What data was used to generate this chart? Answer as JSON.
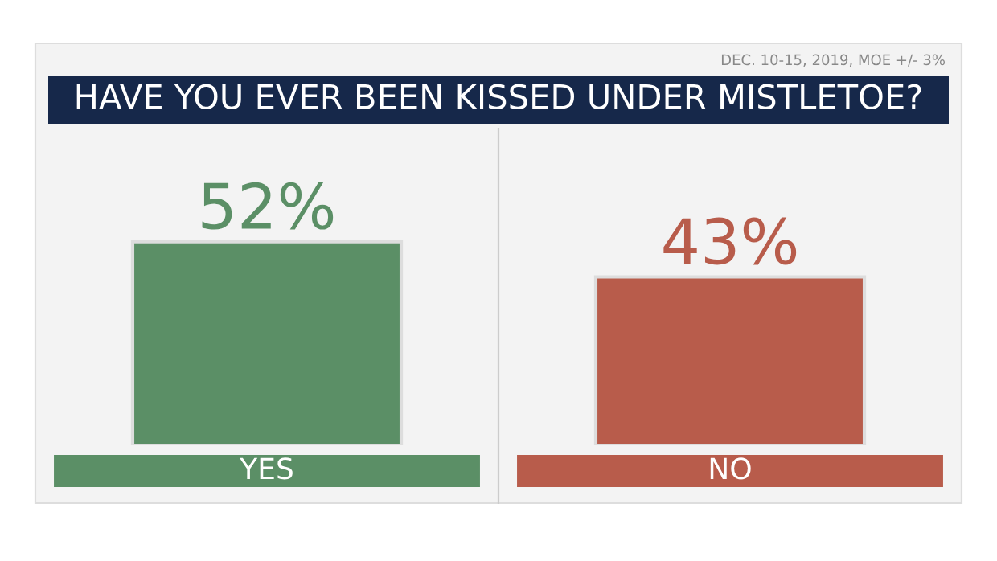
{
  "chart_data": {
    "type": "bar",
    "title": "HAVE YOU EVER BEEN KISSED UNDER MISTLETOE?",
    "annotations": [
      "DEC. 10-15, 2019, MOE +/- 3%"
    ],
    "categories": [
      "YES",
      "NO"
    ],
    "values": [
      52,
      43
    ],
    "value_labels": [
      "52%",
      "43%"
    ],
    "colors": [
      "#5b8f66",
      "#b85c4b"
    ]
  }
}
